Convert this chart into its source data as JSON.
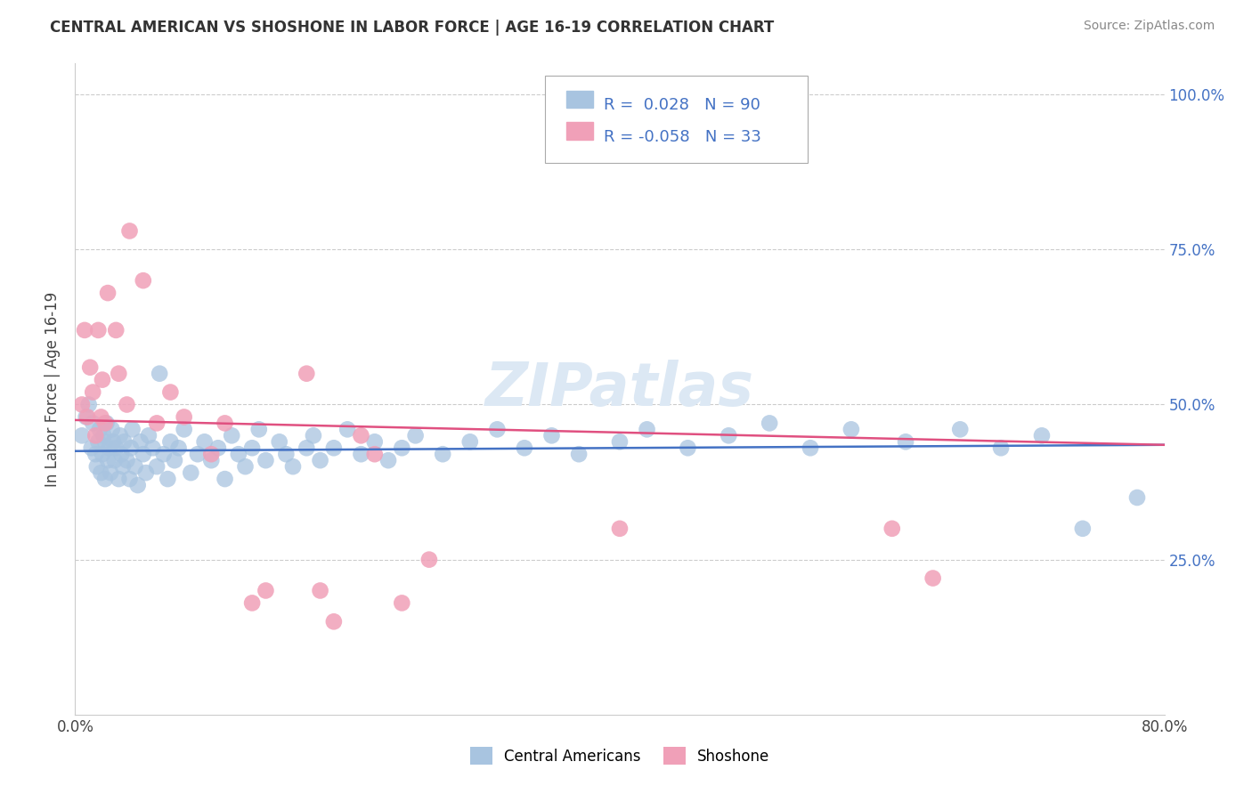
{
  "title": "CENTRAL AMERICAN VS SHOSHONE IN LABOR FORCE | AGE 16-19 CORRELATION CHART",
  "source": "Source: ZipAtlas.com",
  "ylabel": "In Labor Force | Age 16-19",
  "xlim": [
    0.0,
    0.8
  ],
  "ylim": [
    0.0,
    1.05
  ],
  "ytick_vals": [
    0.25,
    0.5,
    0.75,
    1.0
  ],
  "ytick_labels": [
    "25.0%",
    "50.0%",
    "75.0%",
    "100.0%"
  ],
  "xtick_vals": [
    0.0,
    0.8
  ],
  "xtick_labels": [
    "0.0%",
    "80.0%"
  ],
  "blue_R": 0.028,
  "blue_N": 90,
  "pink_R": -0.058,
  "pink_N": 33,
  "blue_color": "#a8c4e0",
  "pink_color": "#f0a0b8",
  "blue_line_color": "#4472c4",
  "pink_line_color": "#e05080",
  "blue_line_start": 0.425,
  "blue_line_end": 0.435,
  "pink_line_start": 0.475,
  "pink_line_end": 0.435,
  "dot_size": 180,
  "watermark": "ZIPatlas",
  "blue_x": [
    0.005,
    0.008,
    0.01,
    0.012,
    0.013,
    0.015,
    0.016,
    0.017,
    0.018,
    0.019,
    0.02,
    0.021,
    0.022,
    0.022,
    0.023,
    0.024,
    0.025,
    0.026,
    0.027,
    0.028,
    0.029,
    0.03,
    0.032,
    0.033,
    0.034,
    0.035,
    0.036,
    0.038,
    0.04,
    0.041,
    0.042,
    0.044,
    0.046,
    0.048,
    0.05,
    0.052,
    0.054,
    0.057,
    0.06,
    0.062,
    0.065,
    0.068,
    0.07,
    0.073,
    0.076,
    0.08,
    0.085,
    0.09,
    0.095,
    0.1,
    0.105,
    0.11,
    0.115,
    0.12,
    0.125,
    0.13,
    0.135,
    0.14,
    0.15,
    0.155,
    0.16,
    0.17,
    0.175,
    0.18,
    0.19,
    0.2,
    0.21,
    0.22,
    0.23,
    0.24,
    0.25,
    0.27,
    0.29,
    0.31,
    0.33,
    0.35,
    0.37,
    0.4,
    0.42,
    0.45,
    0.48,
    0.51,
    0.54,
    0.57,
    0.61,
    0.65,
    0.68,
    0.71,
    0.74,
    0.78
  ],
  "blue_y": [
    0.45,
    0.48,
    0.5,
    0.43,
    0.47,
    0.42,
    0.4,
    0.44,
    0.46,
    0.39,
    0.42,
    0.45,
    0.38,
    0.44,
    0.47,
    0.41,
    0.43,
    0.39,
    0.46,
    0.44,
    0.41,
    0.43,
    0.38,
    0.45,
    0.42,
    0.4,
    0.44,
    0.41,
    0.38,
    0.43,
    0.46,
    0.4,
    0.37,
    0.44,
    0.42,
    0.39,
    0.45,
    0.43,
    0.4,
    0.55,
    0.42,
    0.38,
    0.44,
    0.41,
    0.43,
    0.46,
    0.39,
    0.42,
    0.44,
    0.41,
    0.43,
    0.38,
    0.45,
    0.42,
    0.4,
    0.43,
    0.46,
    0.41,
    0.44,
    0.42,
    0.4,
    0.43,
    0.45,
    0.41,
    0.43,
    0.46,
    0.42,
    0.44,
    0.41,
    0.43,
    0.45,
    0.42,
    0.44,
    0.46,
    0.43,
    0.45,
    0.42,
    0.44,
    0.46,
    0.43,
    0.45,
    0.47,
    0.43,
    0.46,
    0.44,
    0.46,
    0.43,
    0.45,
    0.3,
    0.35
  ],
  "pink_x": [
    0.005,
    0.007,
    0.009,
    0.011,
    0.013,
    0.015,
    0.017,
    0.019,
    0.02,
    0.022,
    0.024,
    0.03,
    0.032,
    0.038,
    0.04,
    0.05,
    0.06,
    0.07,
    0.08,
    0.1,
    0.11,
    0.13,
    0.14,
    0.17,
    0.18,
    0.19,
    0.21,
    0.22,
    0.24,
    0.26,
    0.4,
    0.6,
    0.63
  ],
  "pink_y": [
    0.5,
    0.62,
    0.48,
    0.56,
    0.52,
    0.45,
    0.62,
    0.48,
    0.54,
    0.47,
    0.68,
    0.62,
    0.55,
    0.5,
    0.78,
    0.7,
    0.47,
    0.52,
    0.48,
    0.42,
    0.47,
    0.18,
    0.2,
    0.55,
    0.2,
    0.15,
    0.45,
    0.42,
    0.18,
    0.25,
    0.3,
    0.3,
    0.22
  ]
}
